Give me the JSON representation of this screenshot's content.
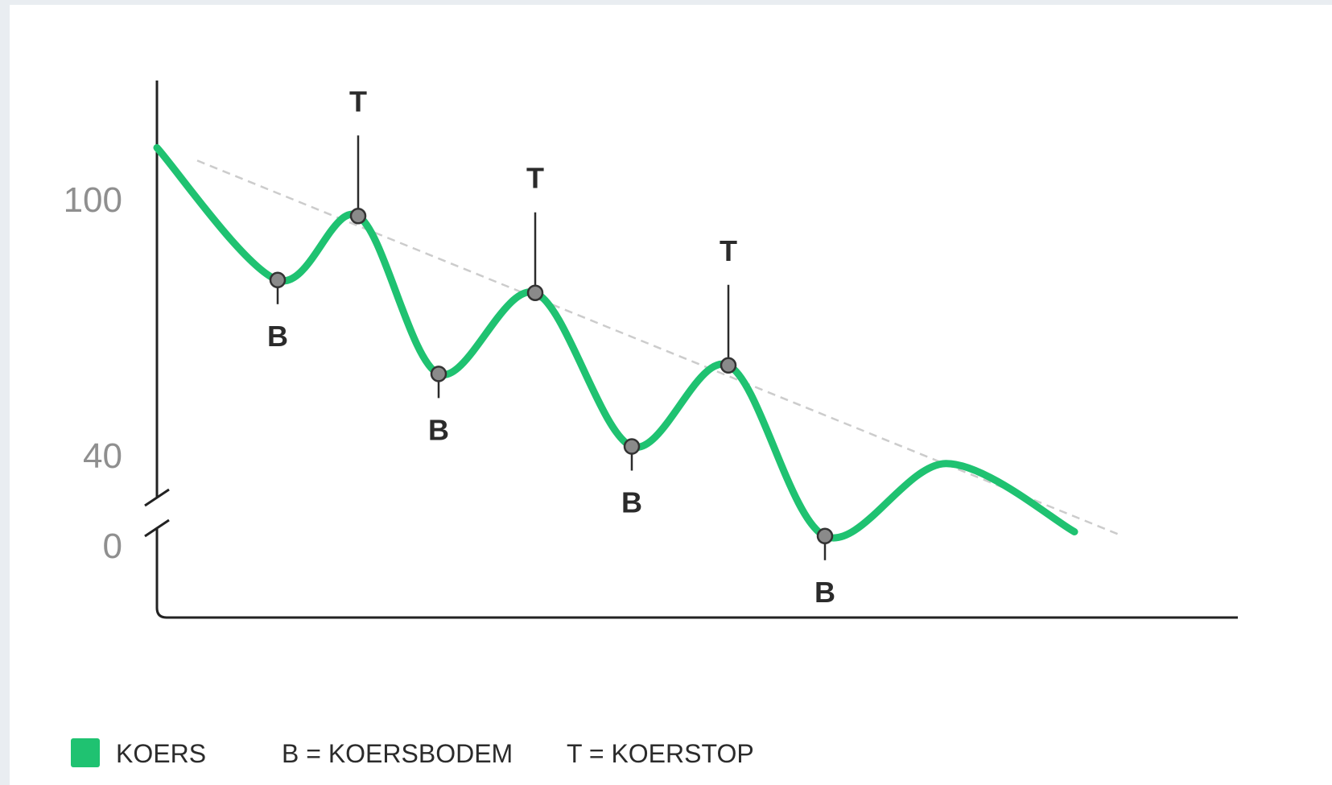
{
  "chart_data": {
    "type": "line",
    "title": "",
    "xlabel": "",
    "ylabel": "",
    "y_ticks": [
      "100",
      "40",
      "0"
    ],
    "y_axis_break": true,
    "grid": false,
    "series": [
      {
        "name": "KOERS",
        "color": "#1fc271",
        "points": [
          {
            "x": 0,
            "y": 115
          },
          {
            "x": 1.5,
            "y": 84
          },
          {
            "x": 2.5,
            "y": 99
          },
          {
            "x": 3.5,
            "y": 62
          },
          {
            "x": 4.7,
            "y": 81
          },
          {
            "x": 5.9,
            "y": 45
          },
          {
            "x": 7.1,
            "y": 64
          },
          {
            "x": 8.3,
            "y": 24
          },
          {
            "x": 9.8,
            "y": 41
          },
          {
            "x": 11.4,
            "y": 25
          }
        ]
      }
    ],
    "trendline": {
      "style": "dashed",
      "color": "#cccccc",
      "from": {
        "x": 0.5,
        "y": 112
      },
      "to": {
        "x": 12.0,
        "y": 24
      }
    },
    "annotations": [
      {
        "label": "B",
        "x": 1.5,
        "y": 84,
        "position": "below"
      },
      {
        "label": "T",
        "x": 2.5,
        "y": 99,
        "position": "above"
      },
      {
        "label": "B",
        "x": 3.5,
        "y": 62,
        "position": "below"
      },
      {
        "label": "T",
        "x": 4.7,
        "y": 81,
        "position": "above"
      },
      {
        "label": "B",
        "x": 5.9,
        "y": 45,
        "position": "below"
      },
      {
        "label": "T",
        "x": 7.1,
        "y": 64,
        "position": "above"
      },
      {
        "label": "B",
        "x": 8.3,
        "y": 24,
        "position": "below"
      }
    ],
    "legend": {
      "placement": "bottom-left",
      "items": [
        "KOERS",
        "B = KOERSBODEM",
        "T = KOERSTOP"
      ]
    }
  }
}
